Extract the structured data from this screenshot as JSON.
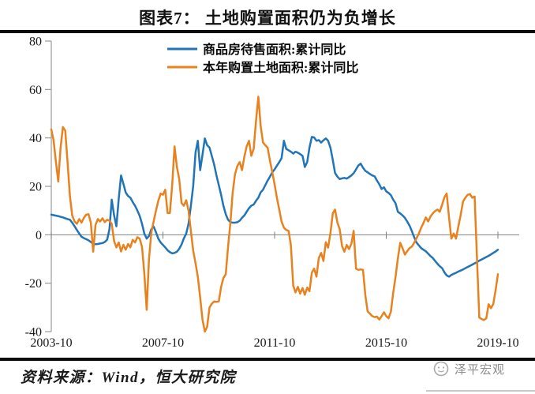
{
  "title": "图表7： 土地购置面积仍为负增长",
  "legend": [
    {
      "label": "商品房待售面积:累计同比",
      "color": "#2074B7"
    },
    {
      "label": "本年购置土地面积:累计同比",
      "color": "#E8821E"
    }
  ],
  "footer": {
    "source": "资料来源：Wind，恒大研究院",
    "watermark": "泽平宏观"
  },
  "chart_data": {
    "type": "line",
    "title": "图表7： 土地购置面积仍为负增长",
    "xlabel": "",
    "ylabel": "",
    "x_unit": "month",
    "x_start": "2003-10",
    "x_end": "2019-10",
    "months_total": 193,
    "ylim": [
      -40,
      80
    ],
    "yticks": [
      80,
      60,
      40,
      20,
      0,
      -20,
      -40
    ],
    "xticks": [
      {
        "label": "2003-10",
        "index": 0
      },
      {
        "label": "2007-10",
        "index": 48
      },
      {
        "label": "2011-10",
        "index": 96
      },
      {
        "label": "2015-10",
        "index": 144
      },
      {
        "label": "2019-10",
        "index": 192
      }
    ],
    "grid": "zero-line-only",
    "legend_position": "top-center",
    "series": [
      {
        "name": "商品房待售面积:累计同比",
        "color": "#2074B7",
        "values": [
          8.3,
          8.1,
          7.9,
          7.7,
          7.4,
          7.2,
          6.8,
          6.5,
          6.2,
          5,
          3.5,
          2,
          0.5,
          -0.8,
          -1.4,
          -1.8,
          -2.3,
          -3,
          -3.7,
          -3.9,
          -3.8,
          -3.6,
          -3.4,
          -3,
          -2,
          2.3,
          14.5,
          8,
          3.5,
          15,
          24.5,
          21,
          17.5,
          16,
          15.3,
          13.5,
          12,
          10,
          7.8,
          4.5,
          0.5,
          -1.6,
          -0.5,
          2.3,
          3.4,
          1,
          -1.6,
          -3.2,
          -4.2,
          -5.2,
          -6.4,
          -7.2,
          -7.7,
          -7.5,
          -7,
          -5.8,
          -4,
          -1.5,
          0.5,
          4.5,
          12,
          20,
          34,
          38.8,
          26.7,
          33,
          39.8,
          37,
          36,
          32.6,
          29,
          24.5,
          20.5,
          16.5,
          12,
          8.5,
          6.2,
          5.2,
          5,
          5,
          5.2,
          5.8,
          7,
          8,
          9.5,
          11,
          12,
          12.5,
          14,
          15.3,
          17.5,
          18.6,
          20.5,
          22.4,
          24,
          25.8,
          27,
          28.5,
          30,
          31.6,
          38.8,
          35.5,
          34.9,
          34.3,
          33.5,
          34.3,
          33.9,
          33.3,
          32.6,
          28,
          30,
          36,
          40.4,
          40.2,
          38.8,
          39.1,
          38.1,
          39,
          39.8,
          38.8,
          35.9,
          31,
          25.5,
          24,
          23,
          23.3,
          23.5,
          23.2,
          23.8,
          24.5,
          25.4,
          27,
          28.6,
          29.4,
          27.7,
          26.4,
          25.8,
          25.1,
          24.5,
          24.1,
          22.4,
          20.8,
          18.9,
          19.6,
          17.9,
          17.3,
          16.3,
          14.5,
          13,
          9.5,
          8.8,
          8,
          7,
          5.5,
          3.8,
          1.5,
          -1,
          -3.2,
          -4.4,
          -5.5,
          -6.2,
          -6.8,
          -7.8,
          -8.8,
          -9.6,
          -10.8,
          -12,
          -13,
          -13.8,
          -15.5,
          -16.8,
          -17.3,
          -16.6,
          -16.1,
          -15.7,
          -15.2,
          -14.8,
          -14.3,
          -13.8,
          -13.3,
          -12.8,
          -12.3,
          -11.8,
          -11.3,
          -10.7,
          -10.2,
          -9.7,
          -9.2,
          -8.7,
          -8.1,
          -7.5,
          -6.9,
          -6.2
        ]
      },
      {
        "name": "本年购置土地面积:累计同比",
        "color": "#E8821E",
        "values": [
          43.5,
          39,
          30,
          22,
          36,
          44.5,
          43,
          30,
          16,
          8,
          5.5,
          4.5,
          6.5,
          5,
          7,
          8.3,
          8.5,
          5,
          -7,
          4,
          6.5,
          5.5,
          6.8,
          5.2,
          6.2,
          5.8,
          4.5,
          -2.6,
          -5.2,
          -3.2,
          -6.9,
          -4.2,
          -6.2,
          -3.8,
          -5.2,
          -2.1,
          -3.2,
          -1,
          -1.6,
          -5,
          -16,
          -31,
          -10,
          1,
          5.5,
          10,
          14,
          17,
          16.5,
          18.6,
          9,
          9,
          21,
          36.5,
          28,
          23,
          13.1,
          12,
          14.3,
          10,
          1.6,
          -6.5,
          -11.7,
          -17.3,
          -26,
          -35,
          -40,
          -38,
          -30,
          -28.5,
          -27.5,
          -27.7,
          -27.5,
          -21.5,
          -17.9,
          -16.3,
          -5,
          5,
          17.6,
          25.1,
          28.4,
          30,
          26.7,
          32.3,
          36.5,
          38.8,
          32.6,
          35.5,
          46.9,
          57,
          45,
          38.1,
          37,
          35.9,
          30.6,
          25.8,
          20.8,
          15.3,
          10.4,
          5.5,
          2.9,
          2,
          1.6,
          -4.2,
          -21,
          -23.8,
          -21.5,
          -24.3,
          -22,
          -24.8,
          -21.8,
          -23.3,
          -15.6,
          -14,
          -17.3,
          -9.6,
          -7.5,
          -10.8,
          -3.1,
          -5.3,
          0.7,
          8.8,
          10.4,
          5,
          2.3,
          -4.7,
          -7,
          -4.2,
          -5.9,
          -3.7,
          1.6,
          -14,
          -14.5,
          -14.3,
          -14.5,
          -25,
          -31.7,
          -32.6,
          -33.6,
          -34,
          -33.8,
          -35,
          -33.6,
          -32,
          -33.6,
          -34.5,
          -31.7,
          -24,
          -17.3,
          -9.8,
          -3.3,
          -5.5,
          -8.2,
          -6.8,
          -5.5,
          -4.9,
          -3.3,
          -1.5,
          0.5,
          2.9,
          4.9,
          7.2,
          5.5,
          7.5,
          8.8,
          9.8,
          10.4,
          9.5,
          12.4,
          15.5,
          17,
          7,
          -1.6,
          0.5,
          -1.6,
          3.5,
          8.2,
          13.7,
          15.3,
          16.5,
          16.8,
          15.3,
          15.8,
          -10,
          -34.2,
          -34.8,
          -35.2,
          -34.5,
          -28.7,
          -30.3,
          -28.7,
          -22.8,
          -16.3
        ]
      }
    ]
  }
}
